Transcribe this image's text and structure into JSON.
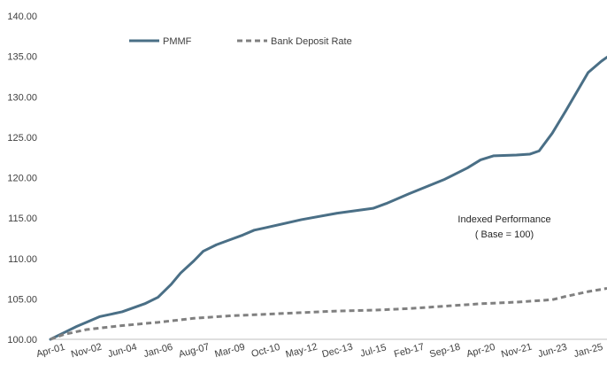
{
  "chart_data": {
    "type": "line",
    "title": "",
    "xlabel": "",
    "ylabel": "",
    "ylim": [
      100,
      140
    ],
    "y_ticks": [
      "100.00",
      "105.00",
      "110.00",
      "115.00",
      "120.00",
      "125.00",
      "130.00",
      "135.00",
      "140.00"
    ],
    "x_ticks": [
      "Apr-01",
      "Nov-02",
      "Jun-04",
      "Jan-06",
      "Aug-07",
      "Mar-09",
      "Oct-10",
      "May-12",
      "Dec-13",
      "Jul-15",
      "Feb-17",
      "Sep-18",
      "Apr-20",
      "Nov-21",
      "Jun-23",
      "Jan-25"
    ],
    "grid": false,
    "legend": "top-left",
    "annotation": [
      "Indexed Performance",
      "( Base = 100)"
    ],
    "series": [
      {
        "name": "PMMF",
        "color": "#4a6f86",
        "style": "solid",
        "points": [
          [
            "Apr-01",
            100.0
          ],
          [
            "Nov-01",
            100.8
          ],
          [
            "Jun-02",
            101.6
          ],
          [
            "Nov-02",
            102.1
          ],
          [
            "Jun-03",
            102.8
          ],
          [
            "Jun-04",
            103.4
          ],
          [
            "Jun-05",
            104.4
          ],
          [
            "Jan-06",
            105.2
          ],
          [
            "Aug-06",
            106.8
          ],
          [
            "Jan-07",
            108.2
          ],
          [
            "Aug-07",
            109.7
          ],
          [
            "Jan-08",
            110.9
          ],
          [
            "Aug-08",
            111.7
          ],
          [
            "Mar-09",
            112.3
          ],
          [
            "Oct-09",
            112.9
          ],
          [
            "Apr-10",
            113.5
          ],
          [
            "Oct-10",
            113.8
          ],
          [
            "May-12",
            114.8
          ],
          [
            "Dec-13",
            115.6
          ],
          [
            "Jul-15",
            116.2
          ],
          [
            "Feb-16",
            116.8
          ],
          [
            "Feb-17",
            118.0
          ],
          [
            "Sep-18",
            119.8
          ],
          [
            "Sep-19",
            121.2
          ],
          [
            "Apr-20",
            122.2
          ],
          [
            "Nov-20",
            122.7
          ],
          [
            "Nov-21",
            122.8
          ],
          [
            "Jun-22",
            122.9
          ],
          [
            "Nov-22",
            123.3
          ],
          [
            "Jun-23",
            125.5
          ],
          [
            "Jan-24",
            128.2
          ],
          [
            "Aug-24",
            131.0
          ],
          [
            "Jan-25",
            133.0
          ],
          [
            "Aug-25",
            134.4
          ],
          [
            "Nov-25",
            134.9
          ]
        ]
      },
      {
        "name": "Bank Deposit Rate",
        "color": "#808080",
        "style": "dashed",
        "points": [
          [
            "Apr-01",
            100.0
          ],
          [
            "Nov-01",
            100.6
          ],
          [
            "Nov-02",
            101.2
          ],
          [
            "Jun-04",
            101.7
          ],
          [
            "Jan-06",
            102.1
          ],
          [
            "Aug-07",
            102.6
          ],
          [
            "Mar-09",
            102.9
          ],
          [
            "Oct-10",
            103.1
          ],
          [
            "May-12",
            103.3
          ],
          [
            "Dec-13",
            103.5
          ],
          [
            "Jul-15",
            103.6
          ],
          [
            "Feb-17",
            103.8
          ],
          [
            "Sep-18",
            104.1
          ],
          [
            "Apr-20",
            104.4
          ],
          [
            "Nov-21",
            104.6
          ],
          [
            "Jun-23",
            104.9
          ],
          [
            "Jan-24",
            105.3
          ],
          [
            "Jan-25",
            105.9
          ],
          [
            "Nov-25",
            106.3
          ]
        ]
      }
    ]
  }
}
